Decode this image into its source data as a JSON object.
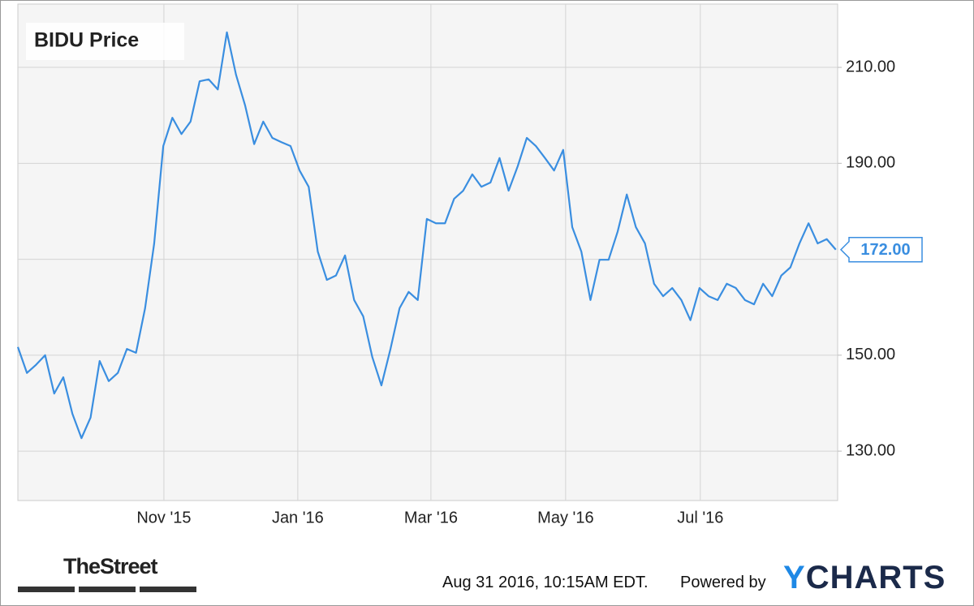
{
  "chart_data": {
    "type": "line",
    "title": "BIDU Price",
    "series": [
      {
        "name": "BIDU Price",
        "color": "#3a8ee0",
        "values": [
          151.7,
          146.3,
          148,
          150,
          142,
          145.4,
          137.8,
          132.7,
          137,
          148.8,
          144.6,
          146.3,
          151.3,
          150.5,
          159.8,
          173.3,
          193.6,
          199.5,
          196.1,
          198.7,
          207.1,
          207.5,
          205.4,
          217.3,
          208.5,
          202.1,
          194,
          198.7,
          195.3,
          194.4,
          193.6,
          188.5,
          185.1,
          171.6,
          165.7,
          166.6,
          170.8,
          161.5,
          158.1,
          149.6,
          143.7,
          151.3,
          159.8,
          163.2,
          161.5,
          178.4,
          177.5,
          177.5,
          182.6,
          184.3,
          187.7,
          185.1,
          186,
          191.1,
          184.3,
          189.4,
          195.3,
          193.6,
          191.1,
          188.5,
          192.8,
          176.7,
          171.6,
          161.5,
          169.9,
          169.9,
          175.8,
          183.5,
          176.7,
          173.3,
          164.9,
          162.3,
          164,
          161.5,
          157.3,
          164,
          162.3,
          161.5,
          164.9,
          164,
          161.5,
          160.6,
          164.9,
          162.3,
          166.6,
          168.3,
          173.3,
          177.5,
          173.3,
          174.2,
          172
        ]
      }
    ],
    "last_value_label": "172.00",
    "xlim": [
      0,
      90.2
    ],
    "xticks": [
      {
        "value": 16.07,
        "label": "Nov '15"
      },
      {
        "value": 30.8,
        "label": "Jan '16"
      },
      {
        "value": 45.45,
        "label": "Mar '16"
      },
      {
        "value": 60.27,
        "label": "May '16"
      },
      {
        "value": 75.09,
        "label": "Jul '16"
      }
    ],
    "ylim": [
      119.7,
      223.2
    ],
    "yticks": [
      {
        "value": 130,
        "label": "130.00"
      },
      {
        "value": 150,
        "label": "150.00"
      },
      {
        "value": 190,
        "label": "190.00"
      },
      {
        "value": 210,
        "label": "210.00"
      }
    ],
    "y_grid": [
      130,
      150,
      170,
      190,
      210
    ],
    "grid": true
  },
  "footer": {
    "source_logo": "TheStreet",
    "timestamp": "Aug 31 2016, 10:15AM EDT.",
    "powered_by": "Powered by",
    "brand": "YCHARTS"
  }
}
